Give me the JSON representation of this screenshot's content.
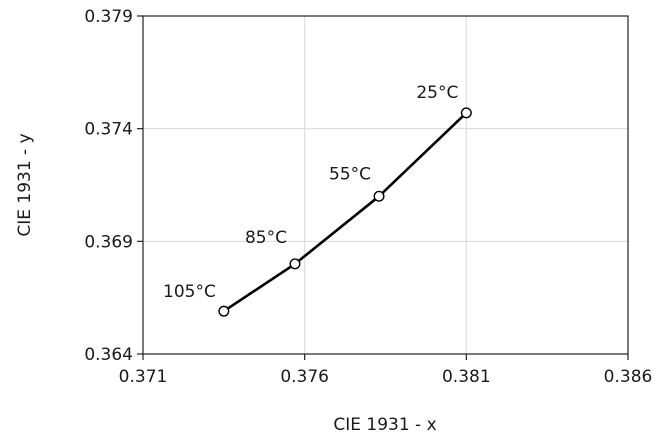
{
  "chart_data": {
    "type": "line",
    "title": "",
    "xlabel": "CIE 1931 - x",
    "ylabel": "CIE 1931 - y",
    "xlim": [
      0.371,
      0.386
    ],
    "ylim": [
      0.364,
      0.379
    ],
    "x_ticks": [
      "0.371",
      "0.376",
      "0.381",
      "0.386"
    ],
    "y_ticks": [
      "0.364",
      "0.369",
      "0.374",
      "0.379"
    ],
    "grid": true,
    "series": [
      {
        "points": [
          {
            "x": 0.3735,
            "y": 0.3659,
            "label": "105°C"
          },
          {
            "x": 0.3757,
            "y": 0.368,
            "label": "85°C"
          },
          {
            "x": 0.3783,
            "y": 0.371,
            "label": "55°C"
          },
          {
            "x": 0.381,
            "y": 0.3747,
            "label": "25°C"
          }
        ]
      }
    ]
  }
}
